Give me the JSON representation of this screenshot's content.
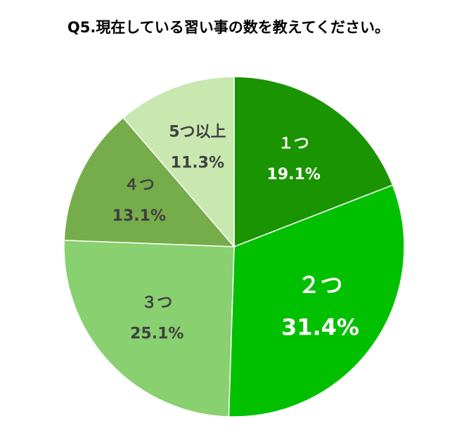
{
  "chart_data": {
    "type": "pie",
    "title": "Q5.現在している習い事の数を教えてください。",
    "categories": [
      "１つ",
      "２つ",
      "３つ",
      "４つ",
      "5つ以上"
    ],
    "values": [
      19.1,
      31.4,
      25.1,
      13.1,
      11.3
    ],
    "value_labels": [
      "19.1%",
      "31.4%",
      "25.1%",
      "13.1%",
      "11.3%"
    ],
    "colors": [
      "#1a9400",
      "#00c000",
      "#88d070",
      "#76ad4b",
      "#c8e8b0"
    ],
    "label_colors": [
      "#ffffff",
      "#ffffff",
      "#404040",
      "#404040",
      "#404040"
    ]
  }
}
